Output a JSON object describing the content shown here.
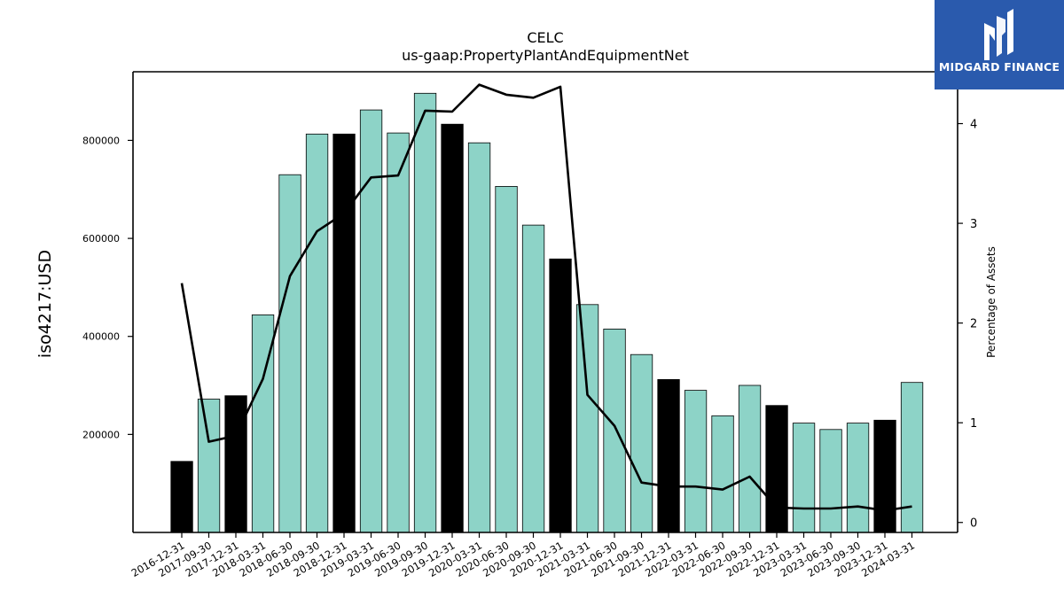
{
  "chart_data": {
    "type": "bar",
    "title": "CELC",
    "subtitle": "us-gaap:PropertyPlantAndEquipmentNet",
    "ylabel": "iso4217:USD",
    "y2label": "Percentage of Assets",
    "ylim": [
      0,
      940000
    ],
    "y2lim": [
      -0.1,
      4.52
    ],
    "yticks": [
      200000,
      400000,
      600000,
      800000
    ],
    "y2ticks": [
      0,
      1,
      2,
      3,
      4
    ],
    "categories": [
      "2016-12-31",
      "2017-09-30",
      "2017-12-31",
      "2018-03-31",
      "2018-06-30",
      "2018-09-30",
      "2018-12-31",
      "2019-03-31",
      "2019-06-30",
      "2019-09-30",
      "2019-12-31",
      "2020-03-31",
      "2020-06-30",
      "2020-09-30",
      "2020-12-31",
      "2021-03-31",
      "2021-06-30",
      "2021-09-30",
      "2021-12-31",
      "2022-03-31",
      "2022-06-30",
      "2022-09-30",
      "2022-12-31",
      "2023-03-31",
      "2023-06-30",
      "2023-09-30",
      "2023-12-31",
      "2024-03-31"
    ],
    "series": [
      {
        "type": "bar",
        "values": [
          145000,
          272000,
          279000,
          444000,
          730000,
          813000,
          813000,
          862000,
          815000,
          896000,
          833000,
          795000,
          706000,
          627000,
          558000,
          465000,
          415000,
          363000,
          312000,
          290000,
          238000,
          300000,
          259000,
          223000,
          210000,
          223000,
          229000,
          306000
        ],
        "highlight": [
          true,
          false,
          true,
          false,
          false,
          false,
          true,
          false,
          false,
          false,
          true,
          false,
          false,
          false,
          true,
          false,
          false,
          false,
          true,
          false,
          false,
          false,
          true,
          false,
          false,
          false,
          true,
          false
        ]
      },
      {
        "type": "line",
        "axis": "secondary",
        "values": [
          2.4,
          0.81,
          0.87,
          1.44,
          2.47,
          2.92,
          3.1,
          3.46,
          3.48,
          4.13,
          4.12,
          4.39,
          4.29,
          4.26,
          4.37,
          1.28,
          0.97,
          0.4,
          0.36,
          0.36,
          0.33,
          0.46,
          0.15,
          0.14,
          0.14,
          0.16,
          0.12,
          0.16
        ]
      }
    ],
    "colors": {
      "bar": "#8dd3c7",
      "bar_highlight": "#000000",
      "line": "#000000",
      "logo_bg": "#2a5aad"
    }
  },
  "logo": {
    "text": "MIDGARD FINANCE"
  }
}
